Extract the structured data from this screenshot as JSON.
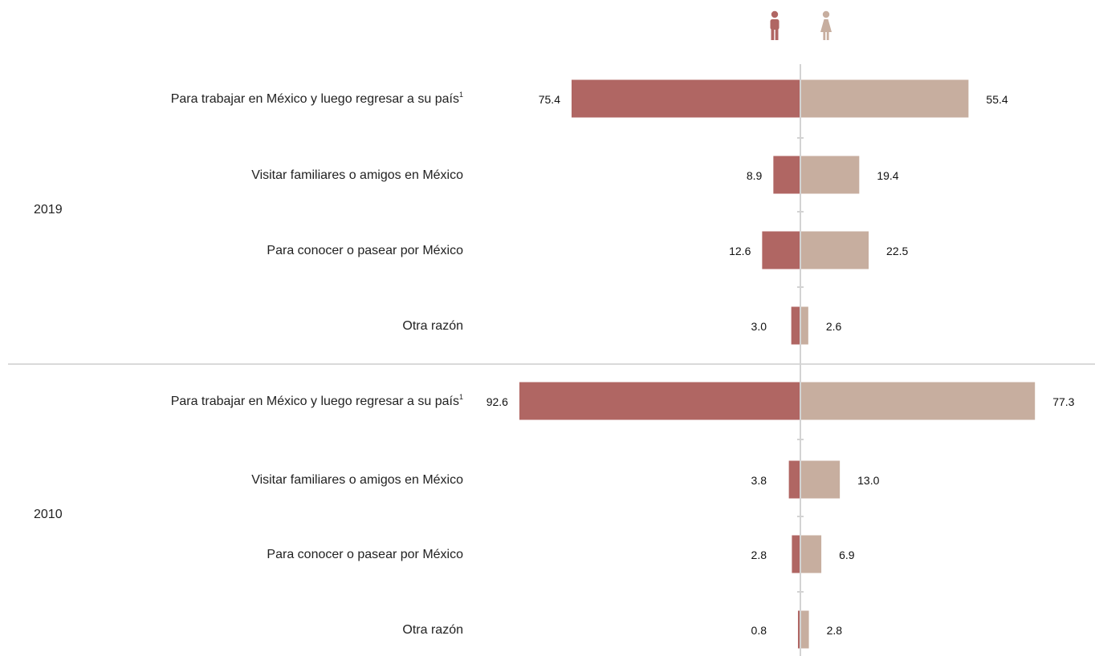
{
  "legend": {
    "male_icon": "man-icon",
    "female_icon": "woman-icon"
  },
  "colors": {
    "male": "#b06663",
    "female": "#c7ae9f",
    "axis": "#d3d3d3",
    "divider": "#d9d9d9"
  },
  "chart_data": {
    "type": "bar",
    "orientation": "horizontal-diverging",
    "categories": [
      "Para trabajar en México y luego regresar a su país",
      "Visitar familiares o amigos en México",
      "Para conocer o pasear por México",
      "Otra razón"
    ],
    "footnote_marks": [
      "1",
      "",
      "",
      ""
    ],
    "groups": [
      {
        "year": "2019",
        "series": [
          {
            "name": "Hombres",
            "values": [
              75.4,
              8.9,
              12.6,
              3.0
            ]
          },
          {
            "name": "Mujeres",
            "values": [
              55.4,
              19.4,
              22.5,
              2.6
            ]
          }
        ]
      },
      {
        "year": "2010",
        "series": [
          {
            "name": "Hombres",
            "values": [
              92.6,
              3.8,
              2.8,
              0.8
            ]
          },
          {
            "name": "Mujeres",
            "values": [
              77.3,
              13.0,
              6.9,
              2.8
            ]
          }
        ]
      }
    ],
    "value_labels": {
      "2019": {
        "male": [
          "75.4",
          "8.9",
          "12.6",
          "3.0"
        ],
        "female": [
          "55.4",
          "19.4",
          "22.5",
          "2.6"
        ]
      },
      "2010": {
        "male": [
          "92.6",
          "3.8",
          "2.8",
          "0.8"
        ],
        "female": [
          "77.3",
          "13.0",
          "6.9",
          "2.8"
        ]
      }
    },
    "xlim": [
      0,
      100
    ],
    "grid": false
  }
}
